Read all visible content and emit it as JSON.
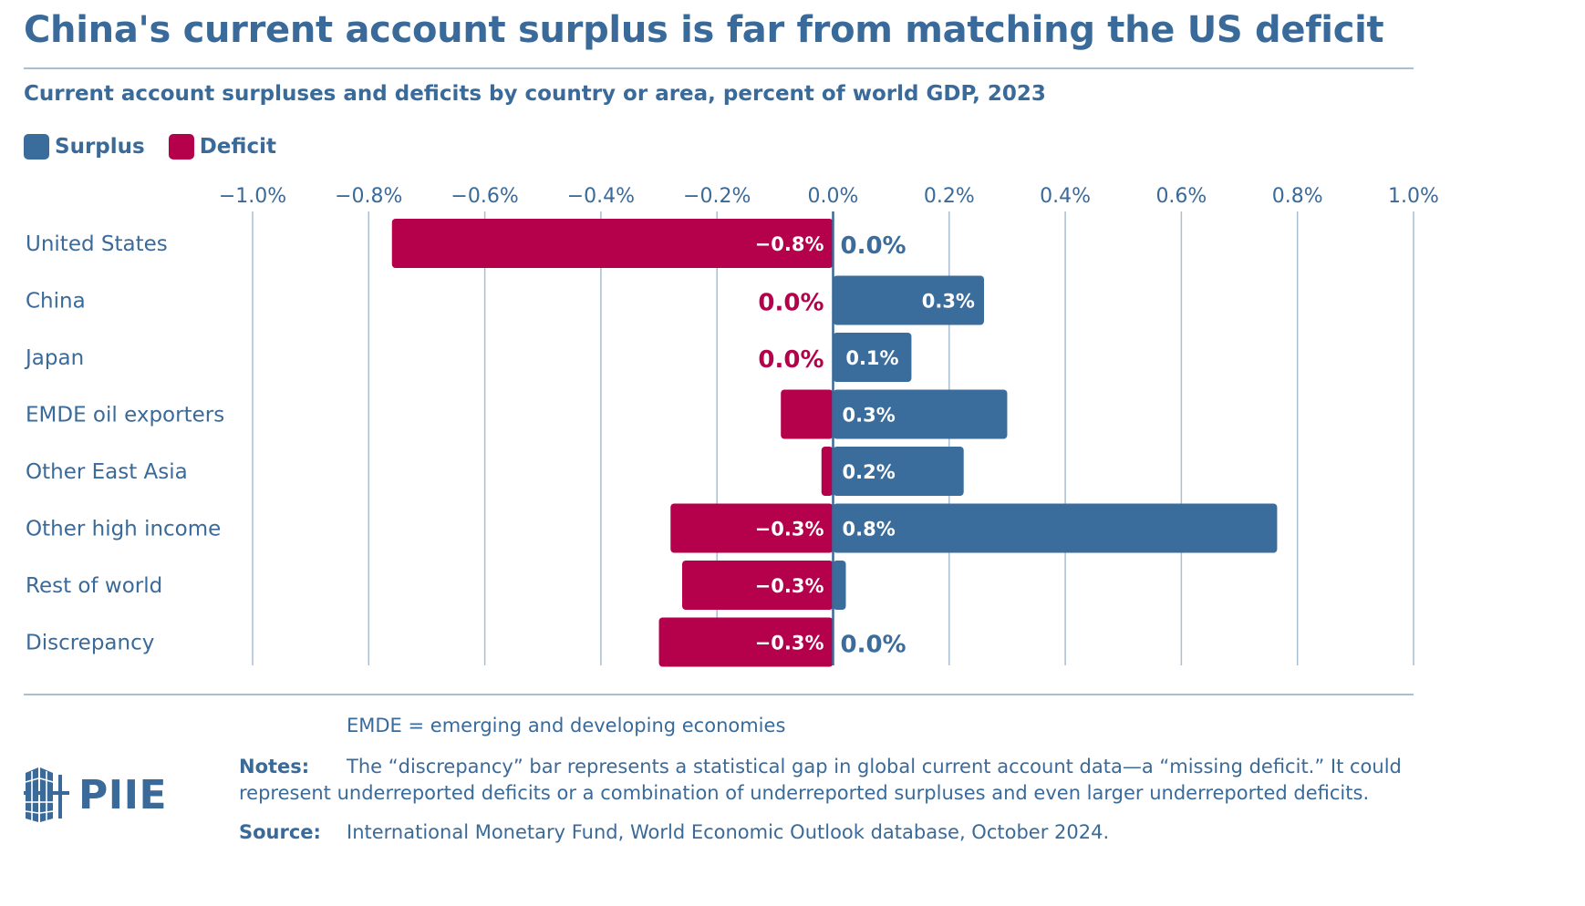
{
  "title": "China's current account surplus is far from matching the US deficit",
  "subtitle": "Current account surpluses and deficits by country or area, percent of world GDP, 2023",
  "legend": [
    {
      "name": "Surplus",
      "color": "#3a6d9c"
    },
    {
      "name": "Deficit",
      "color": "#b5004b"
    }
  ],
  "chart_data": {
    "type": "bar",
    "orientation": "horizontal",
    "stacked": "diverging",
    "categories": [
      "United States",
      "China",
      "Japan",
      "EMDE oil exporters",
      "Other East Asia",
      "Other high income",
      "Rest of world",
      "Discrepancy"
    ],
    "series": [
      {
        "name": "Surplus",
        "color": "#3a6d9c",
        "values": [
          0.0,
          0.26,
          0.135,
          0.3,
          0.225,
          0.765,
          0.022,
          0.0
        ],
        "labels": [
          "0.0%",
          "0.3%",
          "0.1%",
          "0.3%",
          "0.2%",
          "0.8%",
          "",
          "0.0%"
        ]
      },
      {
        "name": "Deficit",
        "color": "#b5004b",
        "values": [
          -0.76,
          0.0,
          0.0,
          -0.09,
          -0.02,
          -0.28,
          -0.26,
          -0.3
        ],
        "labels": [
          "−0.8%",
          "0.0%",
          "0.0%",
          "",
          "",
          "−0.3%",
          "−0.3%",
          "−0.3%"
        ]
      }
    ],
    "xlim": [
      -1.0,
      1.0
    ],
    "xticks": [
      "−1.0%",
      "−0.8%",
      "−0.6%",
      "−0.4%",
      "−0.2%",
      "0.0%",
      "0.2%",
      "0.4%",
      "0.6%",
      "0.8%",
      "1.0%"
    ],
    "grid": true,
    "legend_position": "top-left"
  },
  "notes": {
    "abbrev": "EMDE = emerging and developing economies",
    "notes_label": "Notes:",
    "notes_text": "The “discrepancy” bar represents a statistical gap in global current account data—a “missing deficit.” It could represent underreported deficits or a combination of underreported surpluses and even larger underreported deficits.",
    "source_label": "Source:",
    "source_text": "International Monetary Fund, World Economic Outlook database, October 2024."
  },
  "logo": {
    "text": "PIIE",
    "icon": "piie-building-icon"
  }
}
